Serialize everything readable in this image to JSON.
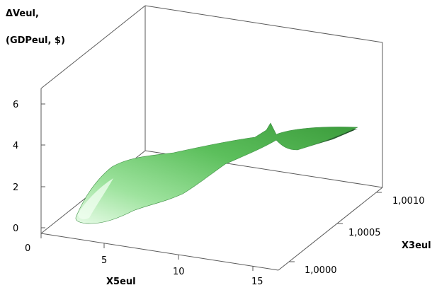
{
  "chart_data": {
    "type": "surface",
    "zlabel_line1": "ΔVeul,",
    "zlabel_line2": "(GDPeul, $)",
    "xlabel": "X5eul",
    "ylabel": "X3eul",
    "xticks": [
      "0",
      "5",
      "10",
      "15"
    ],
    "yticks": [
      "1,0000",
      "1,0005",
      "1,0010"
    ],
    "zticks": [
      "0",
      "2",
      "4",
      "6"
    ],
    "xlim": [
      0,
      15
    ],
    "ylim": [
      0.9997,
      1.0012
    ],
    "zlim": [
      0,
      7
    ],
    "grid": false,
    "surface_color_light": "#c9f0c9",
    "surface_color_mid": "#5cbf5c",
    "surface_color_dark": "#1b4d22",
    "front_ridge": [
      {
        "x": 0.3,
        "z": 0.0
      },
      {
        "x": 2.0,
        "z": 0.3
      },
      {
        "x": 4.5,
        "z": 0.6
      },
      {
        "x": 6.5,
        "z": 0.9
      },
      {
        "x": 9.0,
        "z": 1.1
      },
      {
        "x": 12.0,
        "z": 1.5
      },
      {
        "x": 15.0,
        "z": 2.2
      }
    ],
    "peak": {
      "x": 11.5,
      "y": 1.001,
      "z": 5.2
    }
  }
}
